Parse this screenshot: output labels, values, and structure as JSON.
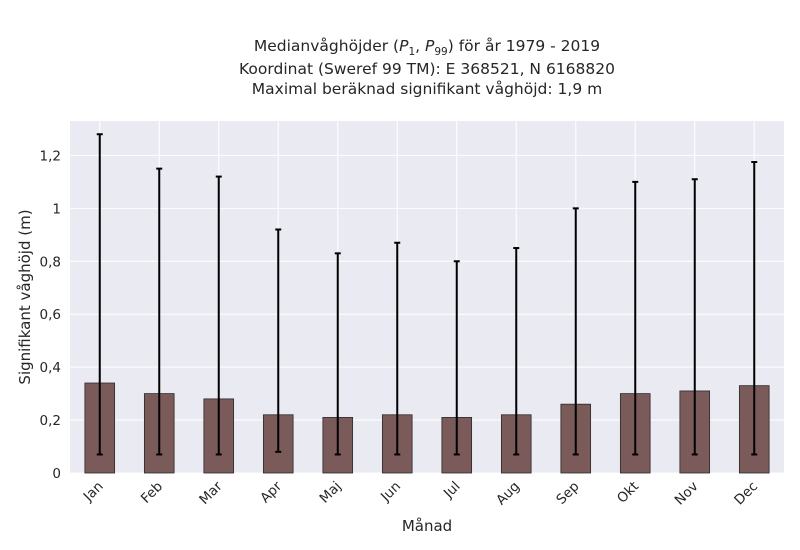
{
  "chart_data": {
    "type": "bar",
    "title_lines": [
      "Medianvåghöjder (P1, P99) för år 1979 - 2019",
      "Koordinat (Sweref 99 TM): E 368521, N 6168820",
      "Maximal beräknad signifikant våghöjd: 1,9 m"
    ],
    "xlabel": "Månad",
    "ylabel": "Signifikant våghöjd (m)",
    "categories": [
      "Jan",
      "Feb",
      "Mar",
      "Apr",
      "Maj",
      "Jun",
      "Jul",
      "Aug",
      "Sep",
      "Okt",
      "Nov",
      "Dec"
    ],
    "values": [
      0.34,
      0.3,
      0.28,
      0.22,
      0.21,
      0.22,
      0.21,
      0.22,
      0.26,
      0.3,
      0.31,
      0.33
    ],
    "error_low": [
      0.07,
      0.07,
      0.07,
      0.08,
      0.07,
      0.07,
      0.07,
      0.07,
      0.07,
      0.07,
      0.07,
      0.07
    ],
    "error_high": [
      1.28,
      1.15,
      1.12,
      0.92,
      0.83,
      0.87,
      0.8,
      0.85,
      1.0,
      1.1,
      1.11,
      1.175
    ],
    "yticks": [
      0,
      0.2,
      0.4,
      0.6,
      0.8,
      1.0,
      1.2
    ],
    "ytick_labels": [
      "0",
      "0,2",
      "0,4",
      "0,6",
      "0,8",
      "1",
      "1,2"
    ],
    "ylim": [
      0,
      1.33
    ],
    "grid": true,
    "colors": {
      "bar": "#7b5a5a",
      "bar_edge": "#2b2b2b",
      "error": "#000000",
      "plot_background": "#eaeaf2",
      "grid": "#ffffff"
    }
  }
}
